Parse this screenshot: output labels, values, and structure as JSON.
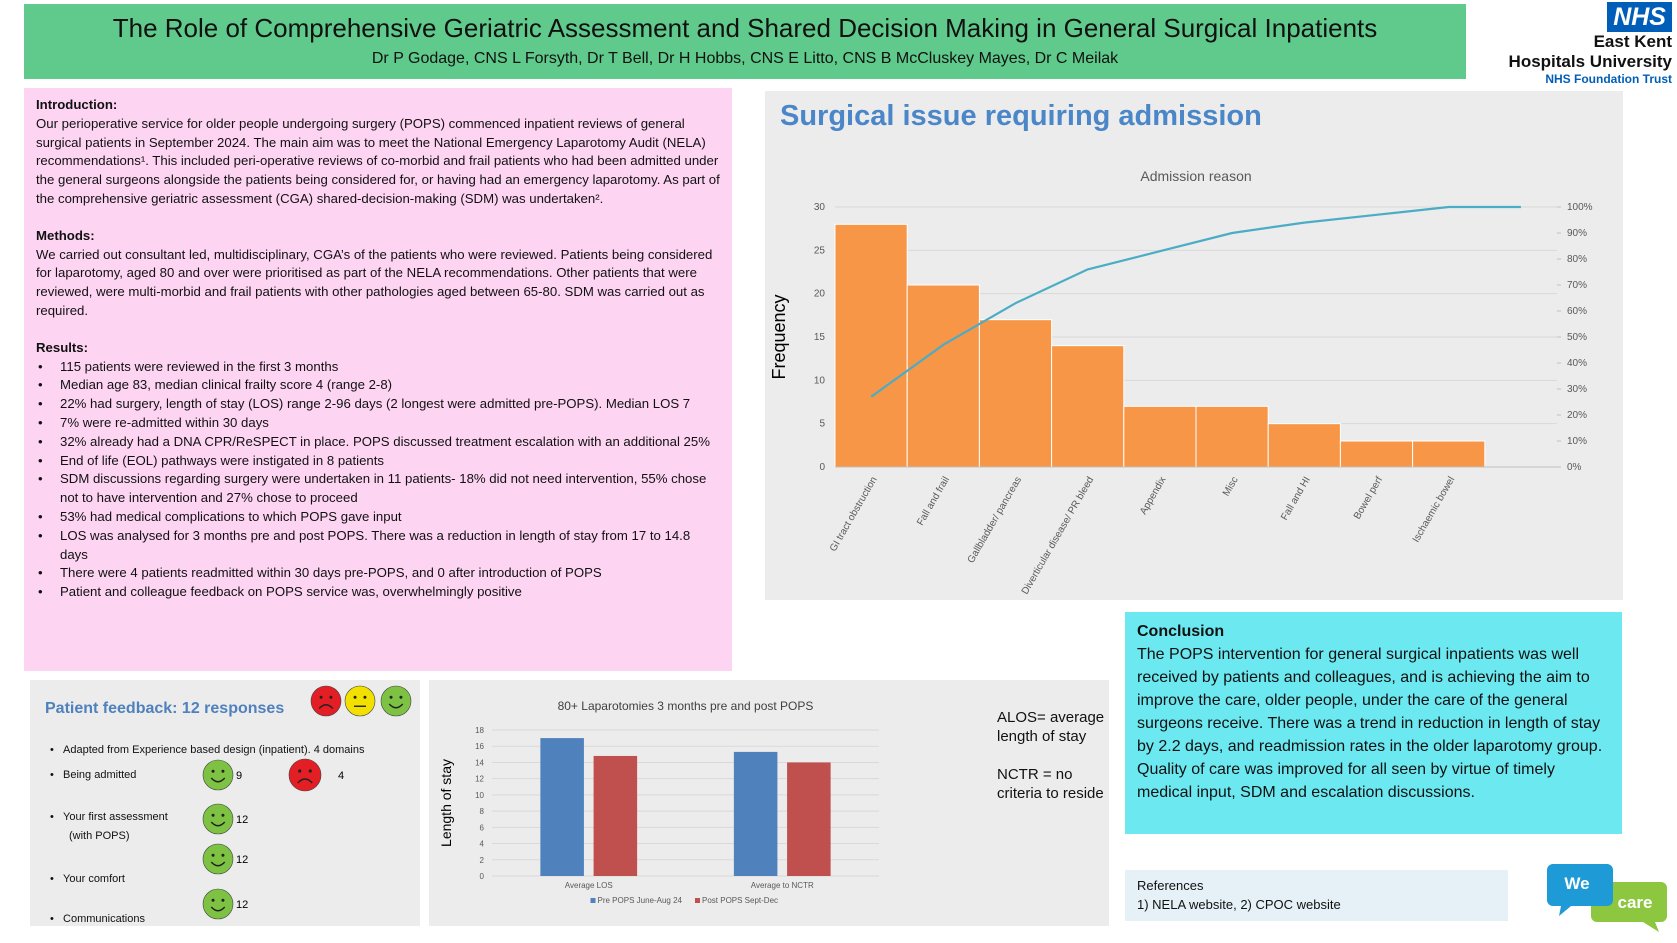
{
  "header": {
    "title": "The Role of Comprehensive Geriatric Assessment and Shared Decision Making in General Surgical Inpatients",
    "authors": "Dr P Godage, CNS L Forsyth, Dr T Bell, Dr H Hobbs, CNS E Litto, CNS B McCluskey Mayes, Dr C Meilak"
  },
  "logo": {
    "mark": "NHS",
    "line1": "East Kent",
    "line2": "Hospitals University",
    "line3": "NHS Foundation Trust"
  },
  "introduction": {
    "heading": "Introduction:",
    "text": "Our perioperative service for older people undergoing surgery (POPS) commenced inpatient reviews of general surgical patients in September 2024. The main aim was to meet the National Emergency Laparotomy Audit (NELA) recommendations¹. This  included peri-operative reviews of co-morbid and frail patients who had been admitted under the general surgeons alongside the patients being considered for, or having had an emergency laparotomy. As part of the comprehensive geriatric assessment (CGA) shared-decision-making (SDM) was undertaken²."
  },
  "methods": {
    "heading": "Methods:",
    "text": "We carried out consultant led, multidisciplinary, CGA’s of the patients who were reviewed. Patients being considered for laparotomy, aged 80 and over were prioritised as part of the NELA recommendations. Other patients that were reviewed, were multi-morbid and frail patients with other pathologies aged between 65-80. SDM was carried out as required."
  },
  "results": {
    "heading": "Results:",
    "items": [
      "115 patients were reviewed in the first 3 months",
      "Median age 83, median clinical frailty score 4 (range 2-8)",
      "22% had surgery, length of stay (LOS) range 2-96 days (2 longest were admitted pre-POPS). Median LOS 7",
      "7% were re-admitted within 30 days",
      "32%  already had a DNA CPR/ReSPECT in place. POPS discussed treatment escalation with an additional 25%",
      "End of life (EOL) pathways were instigated in 8 patients",
      "SDM discussions regarding surgery were undertaken in 11 patients- 18% did not need intervention, 55% chose not to have intervention and 27% chose to proceed",
      "53% had medical complications to which POPS gave input",
      "LOS was analysed for 3 months pre and post POPS. There was a reduction in length of stay from 17 to 14.8 days",
      "There were 4 patients readmitted within 30 days pre-POPS, and 0 after introduction of POPS",
      "Patient and colleague feedback on POPS service was, overwhelmingly positive"
    ]
  },
  "chart_data": [
    {
      "type": "pareto",
      "heading": "Surgical issue requiring admission",
      "title": "Admission reason",
      "ylabel": "Frequency",
      "categories": [
        "GI tract obstruction",
        "Fall and frail",
        "Gallbladder/ pancreas",
        "Diverticular disease/ PR bleed",
        "Appendix",
        "Misc",
        "Fall and HI",
        "Bowel perf",
        "Ischaemic bowel",
        null
      ],
      "values": [
        28,
        21,
        17,
        14,
        7,
        7,
        5,
        3,
        3,
        0
      ],
      "color": "#f79646",
      "line": {
        "values": [
          27,
          47,
          63,
          76,
          83,
          90,
          94,
          97,
          100,
          100
        ],
        "color": "#4bacc6",
        "axis": "y2"
      },
      "ylim": [
        0,
        30
      ],
      "yticks": [
        0,
        5,
        10,
        15,
        20,
        25,
        30
      ],
      "y2lim": [
        0,
        100
      ],
      "y2ticks": [
        {
          "value": 0,
          "label": "0%"
        },
        {
          "value": 10,
          "label": "10%"
        },
        {
          "value": 20,
          "label": "20%"
        },
        {
          "value": 30,
          "label": "30%"
        },
        {
          "value": 40,
          "label": "40%"
        },
        {
          "value": 50,
          "label": "50%"
        },
        {
          "value": 60,
          "label": "60%"
        },
        {
          "value": 70,
          "label": "70%"
        },
        {
          "value": 80,
          "label": "80%"
        },
        {
          "value": 90,
          "label": "90%"
        },
        {
          "value": 100,
          "label": "100%"
        }
      ],
      "grid": true
    },
    {
      "type": "bar",
      "title": "80+ Laparotomies 3 months pre and post POPS",
      "ylabel": "Length of stay",
      "categories": [
        "Average LOS",
        "Average to NCTR"
      ],
      "series": [
        {
          "name": "Pre POPS June-Aug 24",
          "color": "#4f81bd",
          "values": [
            17,
            15.3
          ]
        },
        {
          "name": "Post POPS Sept-Dec",
          "color": "#c0504d",
          "values": [
            14.8,
            14
          ]
        }
      ],
      "ylim": [
        0,
        18
      ],
      "yticks": [
        0,
        2,
        4,
        6,
        8,
        10,
        12,
        14,
        16,
        18
      ],
      "grid": true,
      "legend": "bottom"
    }
  ],
  "feedback": {
    "title": "Patient feedback: 12 responses",
    "note": "Adapted from Experience based design (inpatient).  4 domains",
    "domains": [
      {
        "label": "Being admitted",
        "happy": 9,
        "sad": 4
      },
      {
        "label": "Your first assessment (with POPS)",
        "happy": 12
      },
      {
        "label": "Your comfort",
        "happy": 12
      },
      {
        "label": "Communications",
        "happy": 12
      }
    ]
  },
  "notes": {
    "alos": "ALOS= average length of stay",
    "nctr": "NCTR = no criteria to reside"
  },
  "conclusion": {
    "heading": "Conclusion",
    "text": "The POPS intervention for general surgical inpatients was well received by patients and colleagues, and is achieving the aim to improve the care, older people, under the care of the general surgeons receive. There was a trend in reduction in length of stay by 2.2 days, and readmission rates in the older laparotomy group. Quality of care was improved for all seen by virtue of timely medical input, SDM and escalation discussions."
  },
  "references": {
    "heading": "References",
    "text": "1) NELA website,  2) CPOC website"
  },
  "badge": {
    "we": "We",
    "care": "care"
  }
}
